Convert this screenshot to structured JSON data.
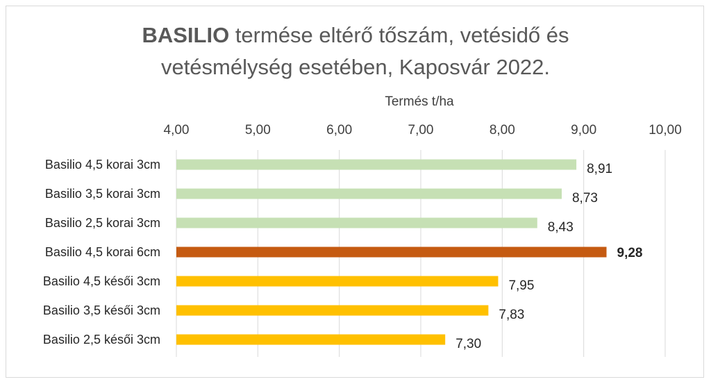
{
  "chart_data": {
    "type": "bar",
    "orientation": "horizontal",
    "title_bold": "BASILIO",
    "title_rest_line1": " termése eltérő tőszám, vetésidő és",
    "title_line2": "vetésmélység esetében, Kaposvár 2022.",
    "xlabel": "Termés t/ha",
    "xaxis_position": "top",
    "xlim": [
      4.0,
      10.0
    ],
    "xticks": [
      "4,00",
      "5,00",
      "6,00",
      "7,00",
      "8,00",
      "9,00",
      "10,00"
    ],
    "grid": "vertical",
    "legend": "none",
    "categories": [
      "Basilio 4,5 korai 3cm",
      "Basilio 3,5 korai 3cm",
      "Basilio 2,5 korai 3cm",
      "Basilio 4,5 korai 6cm",
      "Basilio 4,5 késői 3cm",
      "Basilio 3,5 késői 3cm",
      "Basilio 2,5 késői 3cm"
    ],
    "values": [
      8.91,
      8.73,
      8.43,
      9.28,
      7.95,
      7.83,
      7.3
    ],
    "value_labels": [
      "8,91",
      "8,73",
      "8,43",
      "9,28",
      "7,95",
      "7,83",
      "7,30"
    ],
    "bar_colors": [
      "#c6e0b4",
      "#c6e0b4",
      "#c6e0b4",
      "#c55a11",
      "#ffc000",
      "#ffc000",
      "#ffc000"
    ],
    "highlight_label_color": "#c55a11",
    "highlight_index": 3
  }
}
